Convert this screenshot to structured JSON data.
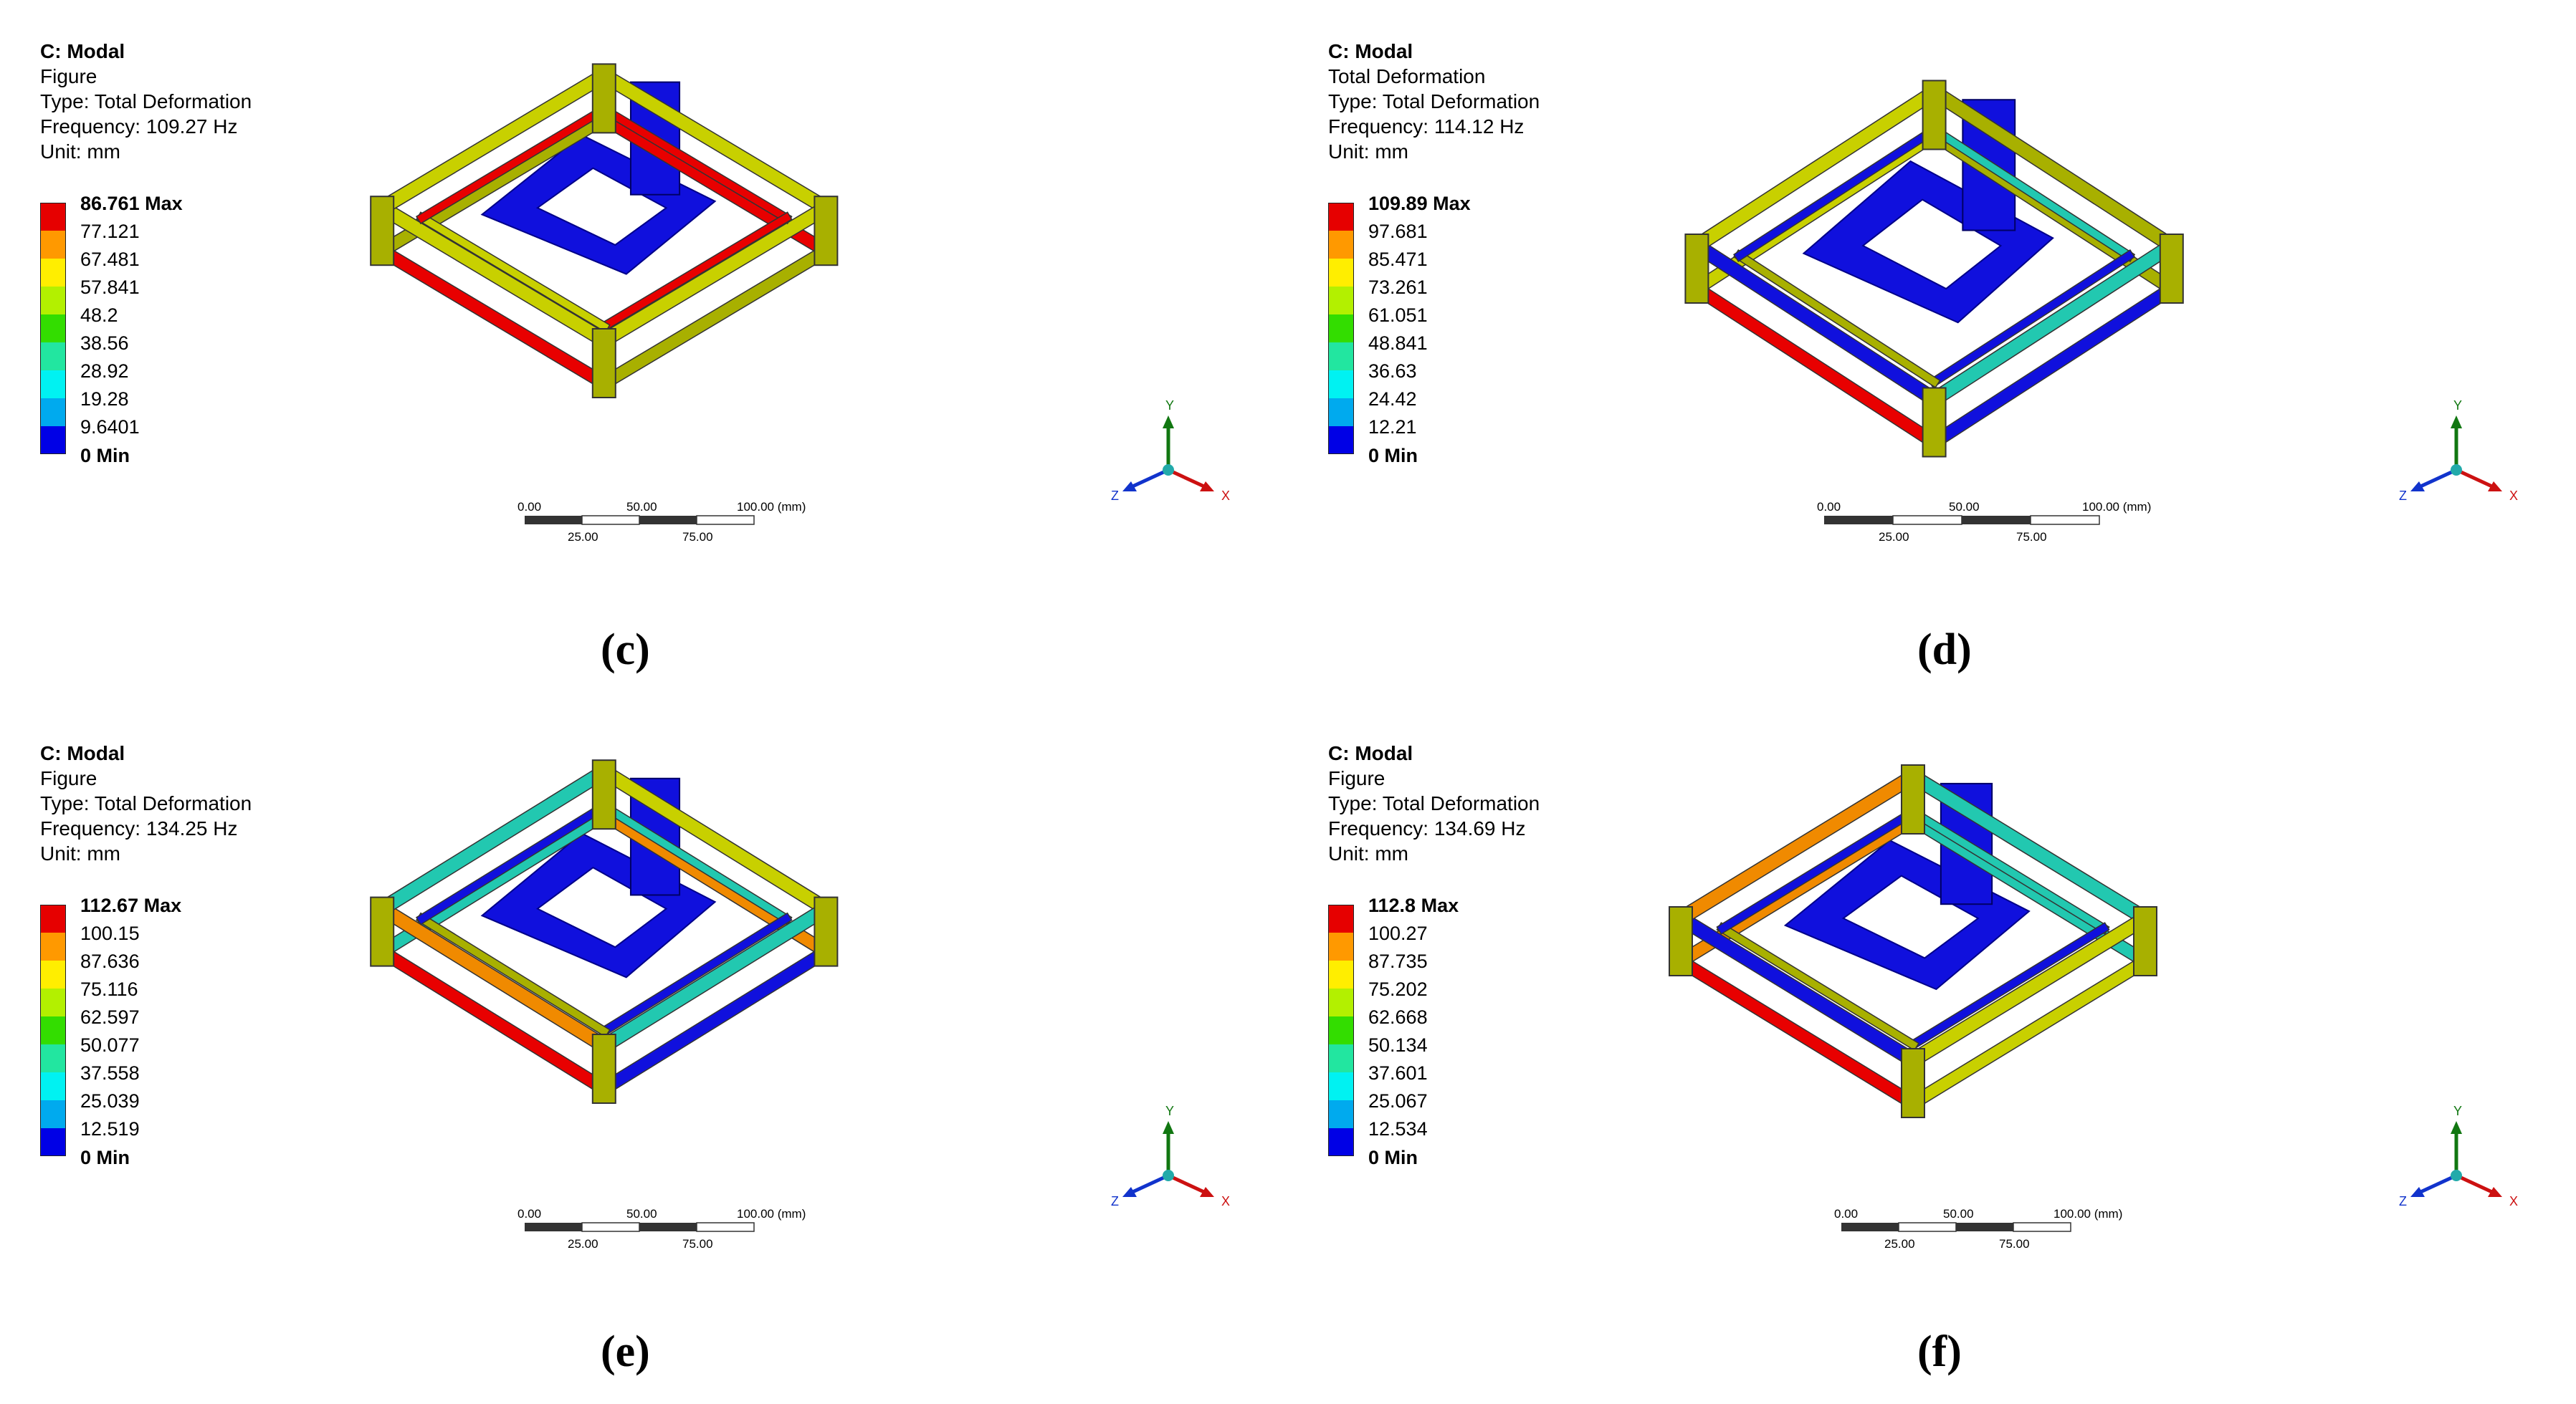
{
  "colors": {
    "legend": [
      "#e60000",
      "#ff9900",
      "#ffee00",
      "#b3f000",
      "#33dd00",
      "#22e6a0",
      "#00f2f2",
      "#00aaee",
      "#0000e6"
    ],
    "frame_top": "#c8d000",
    "frame_side": "#a8b000",
    "hot": "#e80000",
    "warm": "#f08a00",
    "cold": "#1010dd",
    "mid": "#22c8b0",
    "triad_x": "#cc1111",
    "triad_y": "#117711",
    "triad_z": "#1133cc",
    "triad_center": "#22aaaa"
  },
  "panels": [
    {
      "caption": "(c)",
      "info": [
        "C: Modal",
        "Figure",
        "Type: Total Deformation",
        "Frequency: 109.27 Hz",
        "Unit: mm"
      ],
      "legend": [
        "86.761 Max",
        "77.121",
        "67.481",
        "57.841",
        "48.2",
        "38.56",
        "28.92",
        "19.28",
        "9.6401",
        "0 Min"
      ],
      "scale": {
        "top": [
          "0.00",
          "50.00",
          "100.00 (mm)"
        ],
        "bottom": [
          "25.00",
          "75.00"
        ]
      },
      "axes": {
        "x": "X",
        "y": "Y",
        "z": "Z"
      },
      "variant": "c"
    },
    {
      "caption": "(d)",
      "info": [
        "C: Modal",
        "Total Deformation",
        "Type: Total Deformation",
        "Frequency: 114.12 Hz",
        "Unit: mm"
      ],
      "legend": [
        "109.89 Max",
        "97.681",
        "85.471",
        "73.261",
        "61.051",
        "48.841",
        "36.63",
        "24.42",
        "12.21",
        "0 Min"
      ],
      "scale": {
        "top": [
          "0.00",
          "50.00",
          "100.00 (mm)"
        ],
        "bottom": [
          "25.00",
          "75.00"
        ]
      },
      "axes": {
        "x": "X",
        "y": "Y",
        "z": "Z"
      },
      "variant": "d"
    },
    {
      "caption": "(e)",
      "info": [
        "C: Modal",
        "Figure",
        "Type: Total Deformation",
        "Frequency: 134.25 Hz",
        "Unit: mm"
      ],
      "legend": [
        "112.67 Max",
        "100.15",
        "87.636",
        "75.116",
        "62.597",
        "50.077",
        "37.558",
        "25.039",
        "12.519",
        "0 Min"
      ],
      "scale": {
        "top": [
          "0.00",
          "50.00",
          "100.00 (mm)"
        ],
        "bottom": [
          "25.00",
          "75.00"
        ]
      },
      "axes": {
        "x": "X",
        "y": "Y",
        "z": "Z"
      },
      "variant": "e"
    },
    {
      "caption": "(f)",
      "info": [
        "C: Modal",
        "Figure",
        "Type: Total Deformation",
        "Frequency: 134.69 Hz",
        "Unit: mm"
      ],
      "legend": [
        "112.8 Max",
        "100.27",
        "87.735",
        "75.202",
        "62.668",
        "50.134",
        "37.601",
        "25.067",
        "12.534",
        "0 Min"
      ],
      "scale": {
        "top": [
          "0.00",
          "50.00",
          "100.00 (mm)"
        ],
        "bottom": [
          "25.00",
          "75.00"
        ]
      },
      "axes": {
        "x": "X",
        "y": "Y",
        "z": "Z"
      },
      "variant": "f"
    }
  ]
}
